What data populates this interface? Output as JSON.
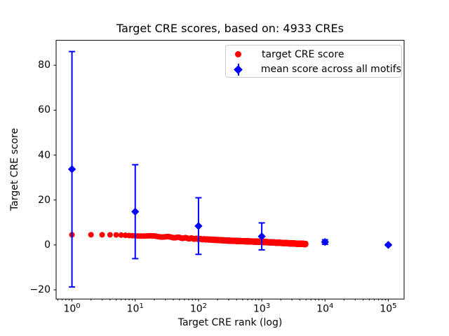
{
  "title": "Target CRE scores, based on: 4933 CREs",
  "axes": {
    "xlabel": "Target CRE rank (log)",
    "ylabel": "Target CRE score"
  },
  "legend": {
    "position": "upper right",
    "items": [
      {
        "label": "target CRE score",
        "marker": "circle",
        "color": "#ff0000"
      },
      {
        "label": "mean score across all motifs",
        "marker": "diamond-with-errorbar",
        "color": "#0000ff"
      }
    ]
  },
  "colors": {
    "target_series": "#ff0000",
    "mean_series": "#0000ff",
    "axis": "#000000",
    "legend_border": "#cccccc",
    "background": "#ffffff"
  },
  "chart_data": {
    "type": "scatter",
    "title": "Target CRE scores, based on: 4933 CREs",
    "xlabel": "Target CRE rank (log)",
    "ylabel": "Target CRE score",
    "x_scale": "log",
    "grid": false,
    "legend_position": "upper right",
    "xlim": [
      0.562,
      177828
    ],
    "ylim": [
      -24.1,
      91.1
    ],
    "x_tick_exponents": [
      0,
      1,
      2,
      3,
      4,
      5
    ],
    "x_tick_base": "10",
    "y_ticks": [
      -20,
      0,
      20,
      40,
      60,
      80
    ],
    "y_tick_labels": [
      "−20",
      "0",
      "20",
      "40",
      "60",
      "80"
    ],
    "series": [
      {
        "name": "target CRE score",
        "plot_type": "scatter",
        "marker": "circle",
        "color": "#ff0000",
        "n_points": 4933,
        "rank_range": [
          1,
          4933
        ],
        "score_vs_rank_knots": [
          [
            1,
            4.45
          ],
          [
            2,
            4.4
          ],
          [
            3,
            4.35
          ],
          [
            5,
            4.3
          ],
          [
            10,
            4.2
          ],
          [
            30,
            3.6
          ],
          [
            100,
            2.65
          ],
          [
            300,
            1.9
          ],
          [
            1000,
            1.35
          ],
          [
            3000,
            0.65
          ],
          [
            4933,
            0.4
          ]
        ]
      },
      {
        "name": "mean score across all motifs",
        "plot_type": "errorbar",
        "marker": "diamond",
        "color": "#0000ff",
        "x": [
          1,
          10,
          100,
          1000,
          10000,
          100000
        ],
        "y": [
          33.7,
          14.8,
          8.4,
          3.8,
          1.3,
          0.0
        ],
        "yerr": [
          52.4,
          20.9,
          12.6,
          6.0,
          1.0,
          0.3
        ]
      }
    ]
  }
}
